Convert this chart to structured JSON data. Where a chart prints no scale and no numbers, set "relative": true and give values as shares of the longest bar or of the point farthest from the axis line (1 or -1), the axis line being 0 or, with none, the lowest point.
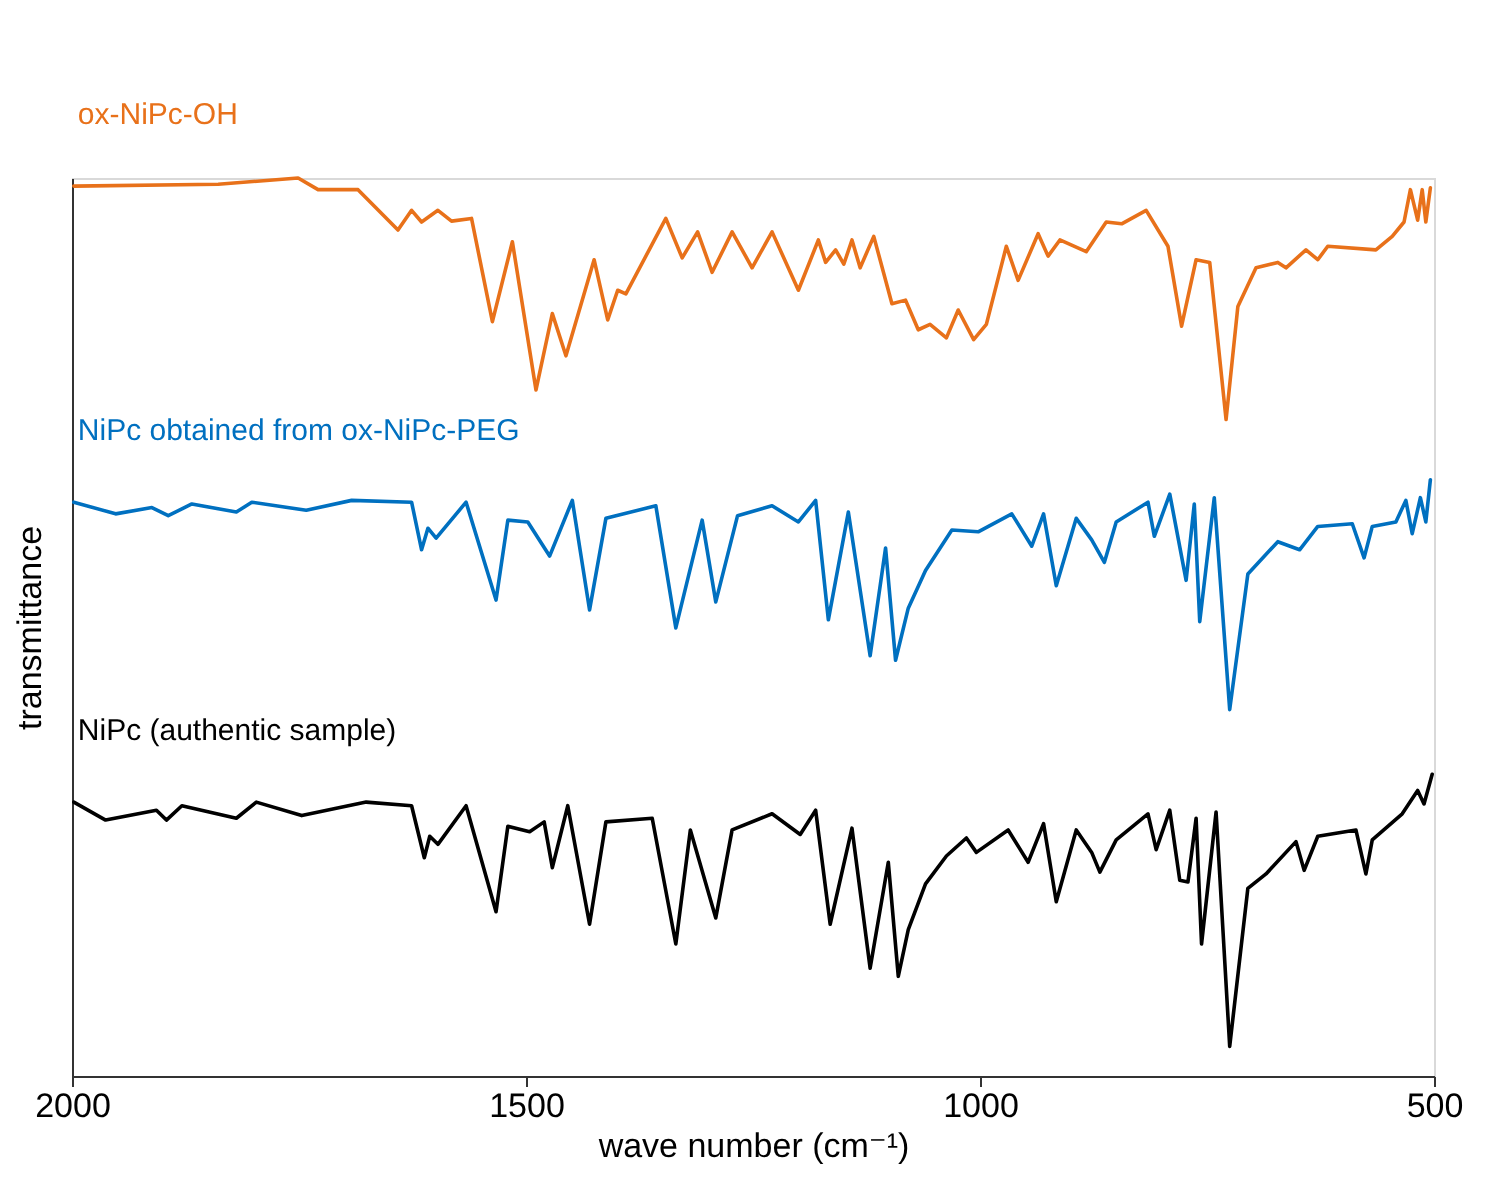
{
  "chart_data": {
    "type": "line",
    "xlabel": "wave number (cm⁻¹)",
    "ylabel": "transmittance",
    "relative": true,
    "xlim": [
      2000,
      500
    ],
    "xticks": [
      2000,
      1500,
      1000,
      500
    ],
    "grid": false,
    "legend": false,
    "line_style": "solid",
    "marker": "none",
    "series": [
      {
        "name": "ox-NiPc-OH",
        "color": "#e8711a",
        "x": [
          1998,
          1839,
          1751,
          1729,
          1685,
          1641,
          1626,
          1615,
          1597,
          1582,
          1560,
          1537,
          1515,
          1489,
          1471,
          1456,
          1425,
          1410,
          1399,
          1390,
          1346,
          1328,
          1311,
          1295,
          1273,
          1251,
          1229,
          1200,
          1178,
          1170,
          1159,
          1150,
          1141,
          1132,
          1117,
          1097,
          1082,
          1068,
          1055,
          1037,
          1024,
          1007,
          993,
          971,
          958,
          936,
          925,
          912,
          883,
          861,
          844,
          817,
          793,
          778,
          762,
          747,
          729,
          716,
          696,
          672,
          663,
          641,
          628,
          617,
          564,
          546,
          533,
          526,
          518,
          513,
          509,
          504
        ],
        "values": [
          0.991,
          0.993,
          1.0,
          0.987,
          0.987,
          0.942,
          0.964,
          0.951,
          0.964,
          0.952,
          0.955,
          0.84,
          0.929,
          0.764,
          0.849,
          0.802,
          0.909,
          0.842,
          0.875,
          0.871,
          0.955,
          0.911,
          0.94,
          0.895,
          0.94,
          0.9,
          0.94,
          0.875,
          0.931,
          0.906,
          0.92,
          0.904,
          0.931,
          0.9,
          0.935,
          0.86,
          0.864,
          0.831,
          0.837,
          0.822,
          0.853,
          0.82,
          0.837,
          0.924,
          0.886,
          0.938,
          0.913,
          0.931,
          0.918,
          0.951,
          0.949,
          0.964,
          0.924,
          0.835,
          0.909,
          0.906,
          0.731,
          0.857,
          0.9,
          0.906,
          0.9,
          0.92,
          0.909,
          0.924,
          0.92,
          0.935,
          0.951,
          0.987,
          0.953,
          0.987,
          0.951,
          0.989
        ]
      },
      {
        "name": "NiPc obtained from ox-NiPc-PEG",
        "color": "#0070c0",
        "x": [
          1998,
          1952,
          1912,
          1894,
          1868,
          1819,
          1802,
          1742,
          1692,
          1626,
          1615,
          1608,
          1599,
          1566,
          1533,
          1520,
          1498,
          1474,
          1449,
          1430,
          1412,
          1357,
          1335,
          1306,
          1291,
          1267,
          1229,
          1200,
          1181,
          1167,
          1145,
          1121,
          1104,
          1093,
          1079,
          1060,
          1031,
          1002,
          965,
          943,
          930,
          916,
          894,
          877,
          863,
          850,
          815,
          808,
          791,
          773,
          764,
          758,
          742,
          725,
          705,
          672,
          648,
          628,
          590,
          577,
          568,
          542,
          531,
          524,
          515,
          509,
          504
        ],
        "values": [
          0.639,
          0.626,
          0.633,
          0.624,
          0.637,
          0.628,
          0.639,
          0.63,
          0.641,
          0.639,
          0.586,
          0.61,
          0.599,
          0.639,
          0.53,
          0.619,
          0.617,
          0.579,
          0.641,
          0.519,
          0.621,
          0.635,
          0.499,
          0.619,
          0.528,
          0.624,
          0.635,
          0.617,
          0.641,
          0.508,
          0.628,
          0.468,
          0.588,
          0.463,
          0.521,
          0.563,
          0.608,
          0.606,
          0.626,
          0.59,
          0.626,
          0.546,
          0.621,
          0.597,
          0.572,
          0.617,
          0.639,
          0.601,
          0.648,
          0.552,
          0.637,
          0.506,
          0.644,
          0.408,
          0.559,
          0.595,
          0.586,
          0.612,
          0.615,
          0.577,
          0.612,
          0.617,
          0.641,
          0.604,
          0.644,
          0.617,
          0.664
        ]
      },
      {
        "name": "NiPc (authentic sample)",
        "color": "#000000",
        "x": [
          1998,
          1963,
          1907,
          1896,
          1879,
          1819,
          1797,
          1747,
          1676,
          1626,
          1612,
          1606,
          1597,
          1566,
          1533,
          1520,
          1496,
          1480,
          1471,
          1454,
          1430,
          1412,
          1361,
          1335,
          1319,
          1291,
          1273,
          1229,
          1198,
          1181,
          1165,
          1141,
          1121,
          1101,
          1090,
          1079,
          1060,
          1037,
          1015,
          1004,
          969,
          947,
          930,
          916,
          894,
          877,
          868,
          850,
          815,
          806,
          791,
          780,
          771,
          762,
          756,
          740,
          725,
          705,
          685,
          652,
          643,
          628,
          586,
          575,
          568,
          535,
          518,
          511,
          502
        ],
        "values": [
          0.305,
          0.285,
          0.296,
          0.285,
          0.301,
          0.287,
          0.305,
          0.29,
          0.305,
          0.301,
          0.243,
          0.267,
          0.258,
          0.301,
          0.183,
          0.278,
          0.272,
          0.283,
          0.232,
          0.301,
          0.169,
          0.283,
          0.287,
          0.147,
          0.274,
          0.176,
          0.274,
          0.292,
          0.269,
          0.296,
          0.169,
          0.276,
          0.12,
          0.238,
          0.111,
          0.163,
          0.214,
          0.245,
          0.265,
          0.249,
          0.274,
          0.238,
          0.281,
          0.194,
          0.274,
          0.249,
          0.227,
          0.263,
          0.292,
          0.252,
          0.296,
          0.218,
          0.216,
          0.287,
          0.147,
          0.294,
          0.033,
          0.209,
          0.225,
          0.261,
          0.229,
          0.267,
          0.274,
          0.225,
          0.263,
          0.292,
          0.318,
          0.303,
          0.336
        ]
      }
    ]
  }
}
